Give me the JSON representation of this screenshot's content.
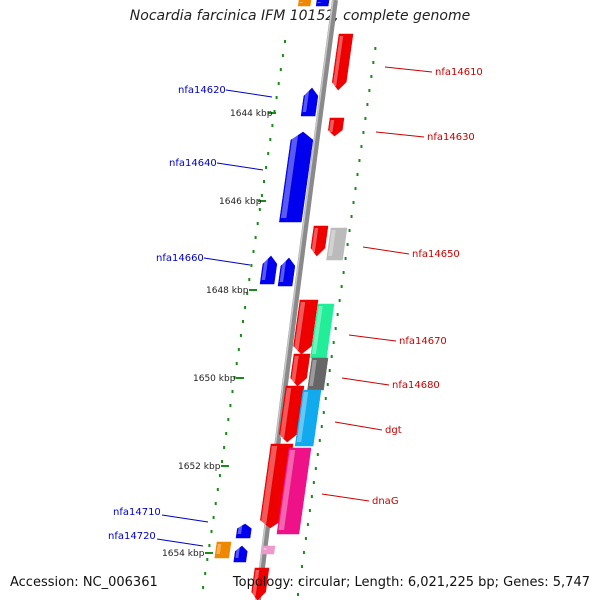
{
  "title": "Nocardia farcinica IFM 10152, complete genome",
  "footer": {
    "accession": "Accession: NC_006361",
    "topology": "Topology: circular; Length: 6,021,225 bp; Genes: 5,747"
  },
  "colors": {
    "backbone": "#8a8a8a",
    "dotted_track": "#1a8c1a",
    "reverse_label": "#0000cc",
    "forward_label": "#cc0000"
  },
  "ticks": [
    {
      "label": "1644 kbp"
    },
    {
      "label": "1646 kbp"
    },
    {
      "label": "1648 kbp"
    },
    {
      "label": "1650 kbp"
    },
    {
      "label": "1652 kbp"
    },
    {
      "label": "1654 kbp"
    }
  ],
  "gene_labels": [
    {
      "text": "nfa14610",
      "strand": "forward"
    },
    {
      "text": "nfa14620",
      "strand": "reverse"
    },
    {
      "text": "nfa14630",
      "strand": "forward"
    },
    {
      "text": "nfa14640",
      "strand": "reverse"
    },
    {
      "text": "nfa14650",
      "strand": "forward"
    },
    {
      "text": "nfa14660",
      "strand": "reverse"
    },
    {
      "text": "nfa14670",
      "strand": "forward"
    },
    {
      "text": "nfa14680",
      "strand": "forward"
    },
    {
      "text": "dgt",
      "strand": "forward"
    },
    {
      "text": "dnaG",
      "strand": "forward"
    },
    {
      "text": "nfa14710",
      "strand": "reverse"
    },
    {
      "text": "nfa14720",
      "strand": "reverse"
    }
  ],
  "feature_colors": {
    "red": "#ee0000",
    "blue": "#0000ee",
    "orange": "#ee8800",
    "gray_light": "#bbbbbb",
    "gray_dark": "#666666",
    "mint": "#22ee99",
    "cyan": "#11aaee",
    "magenta": "#ee1188",
    "pink": "#ee99cc"
  }
}
